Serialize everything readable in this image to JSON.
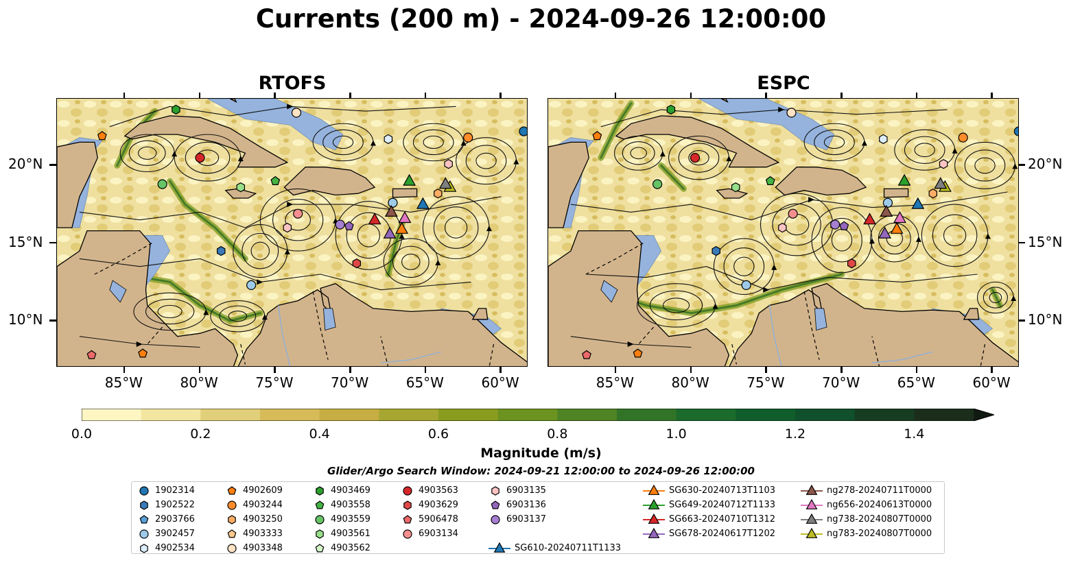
{
  "title": "Currents (200 m) - 2024-09-26 12:00:00",
  "panels": [
    {
      "title": "RTOFS"
    },
    {
      "title": "ESPC"
    }
  ],
  "map_extent": {
    "lon_min": -89.5,
    "lon_max": -58.2,
    "lat_min": 7.0,
    "lat_max": 24.3
  },
  "xticks": [
    "85°W",
    "80°W",
    "75°W",
    "70°W",
    "65°W",
    "60°W"
  ],
  "xtick_lons": [
    -85,
    -80,
    -75,
    -70,
    -65,
    -60
  ],
  "yticks": [
    "20°N",
    "15°N",
    "10°N"
  ],
  "ytick_lats": [
    20,
    15,
    10
  ],
  "colorbar": {
    "title": "Magnitude (m/s)",
    "labels": [
      "0.0",
      "0.2",
      "0.4",
      "0.6",
      "0.8",
      "1.0",
      "1.2",
      "1.4"
    ],
    "label_values": [
      0.0,
      0.2,
      0.4,
      0.6,
      0.8,
      1.0,
      1.2,
      1.4
    ],
    "max": 1.5,
    "colors": [
      "#fdf6c3",
      "#f2e6a0",
      "#e2cf7a",
      "#d6bb58",
      "#c6ae42",
      "#a7a630",
      "#8a9c1e",
      "#6c9320",
      "#4f8424",
      "#327427",
      "#1a6b2c",
      "#0f5e2c",
      "#10502a",
      "#173d21",
      "#1b2e1b"
    ]
  },
  "search_window": "Glider/Argo Search Window: 2024-09-21 12:00:00 to 2024-09-26 12:00:00",
  "colors": {
    "land": "#d2b48c",
    "shallow": "#95b3dd",
    "coast": "#000000",
    "stream": "#111111"
  },
  "legend": [
    {
      "label": "1902314",
      "marker": "circle",
      "color": "#1f77b4"
    },
    {
      "label": "1902522",
      "marker": "hexagon",
      "color": "#3a7ab8"
    },
    {
      "label": "2903766",
      "marker": "pentagon",
      "color": "#5aa0d8"
    },
    {
      "label": "3902457",
      "marker": "circle",
      "color": "#9ecae9"
    },
    {
      "label": "4902534",
      "marker": "hexagon",
      "color": "#ddeefa"
    },
    {
      "label": "4902609",
      "marker": "pentagon",
      "color": "#ff7f0e"
    },
    {
      "label": "4903244",
      "marker": "circle",
      "color": "#ff8c2a"
    },
    {
      "label": "4903250",
      "marker": "hexagon",
      "color": "#ffad66"
    },
    {
      "label": "4903333",
      "marker": "pentagon",
      "color": "#ffc98f"
    },
    {
      "label": "4903348",
      "marker": "circle",
      "color": "#ffe3c4"
    },
    {
      "label": "4903469",
      "marker": "hexagon",
      "color": "#2ca02c"
    },
    {
      "label": "4903558",
      "marker": "pentagon",
      "color": "#45b345"
    },
    {
      "label": "4903559",
      "marker": "circle",
      "color": "#66c466"
    },
    {
      "label": "4903561",
      "marker": "hexagon",
      "color": "#98df8a"
    },
    {
      "label": "4903562",
      "marker": "pentagon",
      "color": "#d4f5c8"
    },
    {
      "label": "4903563",
      "marker": "circle",
      "color": "#d62728"
    },
    {
      "label": "4903629",
      "marker": "hexagon",
      "color": "#e04848"
    },
    {
      "label": "5906478",
      "marker": "pentagon",
      "color": "#ec6a6a"
    },
    {
      "label": "6903134",
      "marker": "circle",
      "color": "#f58f8f"
    },
    {
      "label": "6903135",
      "marker": "hexagon",
      "color": "#fcc3c3"
    },
    {
      "label": "6903136",
      "marker": "pentagon",
      "color": "#9467bd"
    },
    {
      "label": "6903137",
      "marker": "circle",
      "color": "#a57fd0"
    },
    {
      "label": "SG610-20240711T1133",
      "marker": "triangle-line",
      "color": "#1f77b4"
    },
    {
      "label": "SG630-20240713T1103",
      "marker": "triangle-line",
      "color": "#ff7f0e"
    },
    {
      "label": "SG649-20240712T1133",
      "marker": "triangle-line",
      "color": "#2ca02c"
    },
    {
      "label": "SG663-20240710T1312",
      "marker": "triangle-line",
      "color": "#d62728"
    },
    {
      "label": "SG678-20240617T1202",
      "marker": "triangle-line",
      "color": "#9467bd"
    },
    {
      "label": "ng278-20240711T0000",
      "marker": "triangle-line",
      "color": "#8c564b"
    },
    {
      "label": "ng656-20240613T0000",
      "marker": "triangle-line",
      "color": "#e377c2"
    },
    {
      "label": "ng738-20240807T0000",
      "marker": "triangle-line",
      "color": "#7f7f7f"
    },
    {
      "label": "ng783-20240807T0000",
      "marker": "triangle-line",
      "color": "#bcbd22"
    }
  ],
  "observations": [
    {
      "id": "1902314",
      "lon": -58.5,
      "lat": 22.2
    },
    {
      "id": "4902609",
      "lon": -86.5,
      "lat": 21.9
    },
    {
      "id": "4903469",
      "lon": -81.6,
      "lat": 23.6
    },
    {
      "id": "4903244",
      "lon": -62.2,
      "lat": 21.8
    },
    {
      "id": "4902534",
      "lon": -67.5,
      "lat": 21.7
    },
    {
      "id": "6903135",
      "lon": -63.5,
      "lat": 20.1
    },
    {
      "id": "4903563",
      "lon": -80.0,
      "lat": 20.5
    },
    {
      "id": "4903559",
      "lon": -82.5,
      "lat": 18.8
    },
    {
      "id": "4903561",
      "lon": -77.3,
      "lat": 18.6
    },
    {
      "id": "4903558",
      "lon": -75.0,
      "lat": 19.0
    },
    {
      "id": "4903348",
      "lon": -73.6,
      "lat": 23.4
    },
    {
      "id": "4903250",
      "lon": -64.2,
      "lat": 18.2
    },
    {
      "id": "3902457",
      "lon": -67.2,
      "lat": 17.6
    },
    {
      "id": "6903134",
      "lon": -73.5,
      "lat": 16.9
    },
    {
      "id": "6903135",
      "lon": -74.2,
      "lat": 16.0
    },
    {
      "id": "6903137",
      "lon": -70.7,
      "lat": 16.2
    },
    {
      "id": "6903136",
      "lon": -70.1,
      "lat": 16.1
    },
    {
      "id": "1902522",
      "lon": -78.6,
      "lat": 14.5
    },
    {
      "id": "4903629",
      "lon": -69.6,
      "lat": 13.7
    },
    {
      "id": "3902457",
      "lon": -76.6,
      "lat": 12.3
    },
    {
      "id": "5906478",
      "lon": -87.2,
      "lat": 7.8
    },
    {
      "id": "4902609",
      "lon": -83.8,
      "lat": 7.9
    },
    {
      "id": "SG663-20240710T1312",
      "lon": -68.4,
      "lat": 16.5
    },
    {
      "id": "ng278-20240711T0000",
      "lon": -67.3,
      "lat": 17.0
    },
    {
      "id": "ng656-20240613T0000",
      "lon": -66.4,
      "lat": 16.6
    },
    {
      "id": "SG630-20240713T1103",
      "lon": -66.6,
      "lat": 15.9
    },
    {
      "id": "SG678-20240617T1202",
      "lon": -67.4,
      "lat": 15.6
    },
    {
      "id": "SG610-20240711T1133",
      "lon": -65.2,
      "lat": 17.5
    },
    {
      "id": "SG649-20240712T1133",
      "lon": -66.1,
      "lat": 19.0
    },
    {
      "id": "ng783-20240807T0000",
      "lon": -63.4,
      "lat": 18.6
    },
    {
      "id": "ng738-20240807T0000",
      "lon": -63.7,
      "lat": 18.8
    }
  ]
}
